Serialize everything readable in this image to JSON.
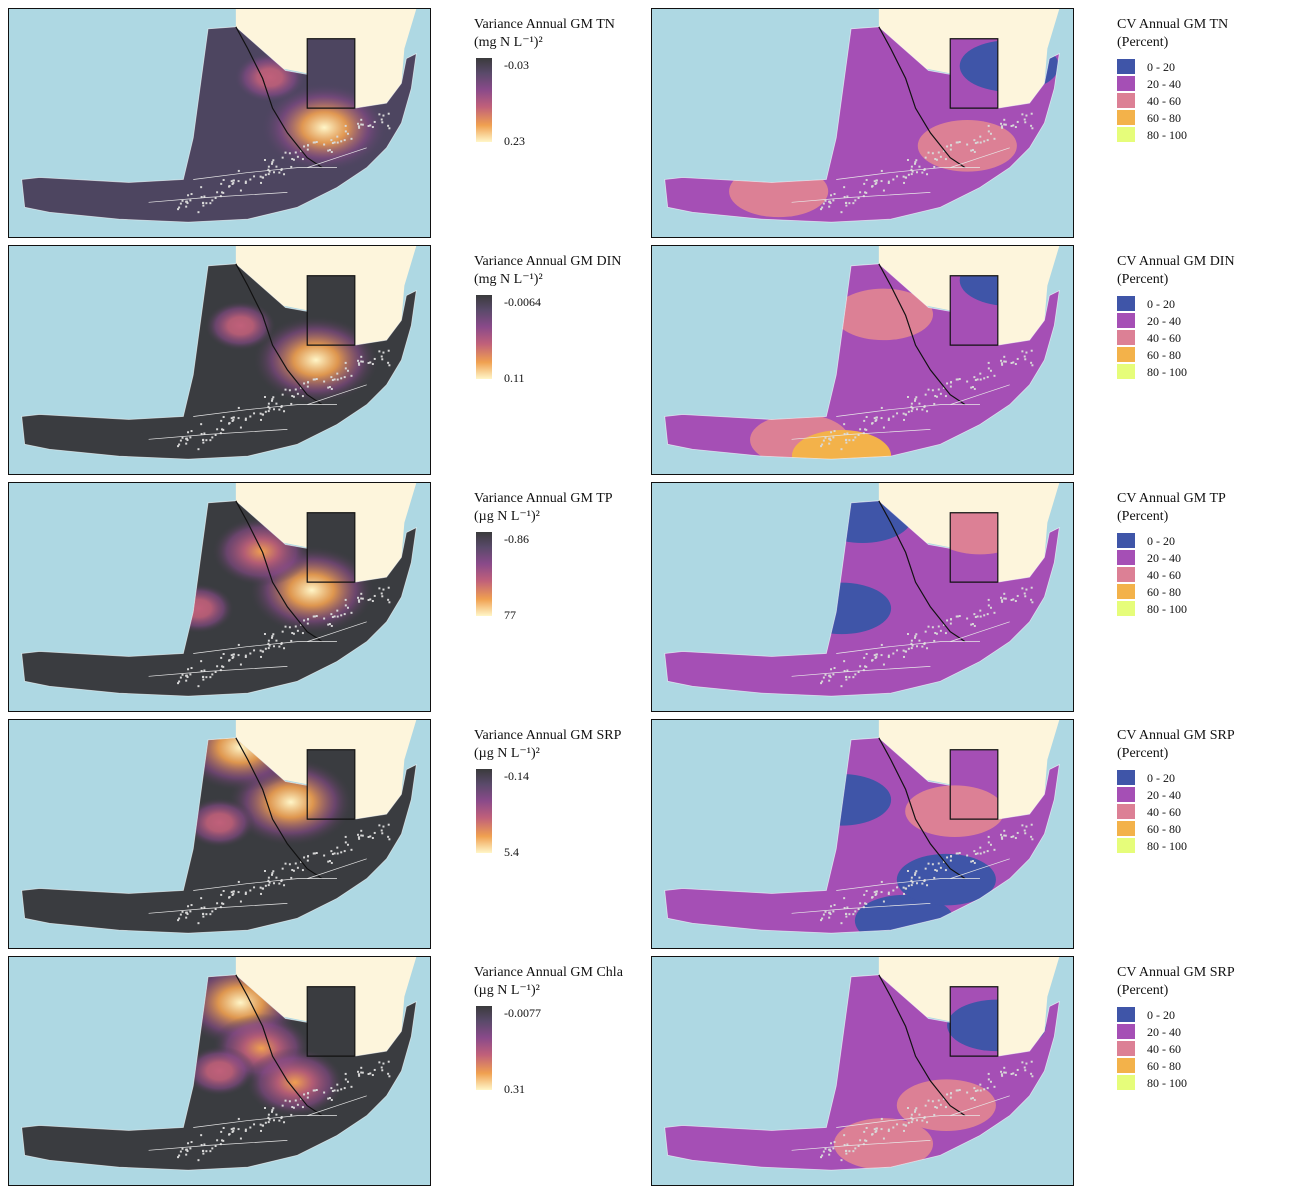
{
  "rows": [
    {
      "var_title": "Variance Annual GM TN",
      "var_unit": "(mg N L⁻¹)²",
      "var_max": "-0.03",
      "var_min": "0.23",
      "cv_title": "CV Annual GM TN",
      "cv_unit": "(Percent)"
    },
    {
      "var_title": "Variance Annual GM DIN",
      "var_unit": "(mg N L⁻¹)²",
      "var_max": "-0.0064",
      "var_min": "0.11",
      "cv_title": "CV Annual GM DIN",
      "cv_unit": "(Percent)"
    },
    {
      "var_title": "Variance Annual GM TP",
      "var_unit": "(µg N L⁻¹)²",
      "var_max": "-0.86",
      "var_min": "77",
      "cv_title": "CV Annual GM TP",
      "cv_unit": "(Percent)"
    },
    {
      "var_title": "Variance Annual GM SRP",
      "var_unit": "(µg N L⁻¹)²",
      "var_max": "-0.14",
      "var_min": "5.4",
      "cv_title": "CV Annual GM SRP",
      "cv_unit": "(Percent)"
    },
    {
      "var_title": "Variance Annual GM Chla",
      "var_unit": "(µg N L⁻¹)²",
      "var_max": "-0.0077",
      "var_min": "0.31",
      "cv_title": "CV Annual GM SRP",
      "cv_unit": "(Percent)"
    }
  ],
  "cv_classes": [
    {
      "label": "0 - 20",
      "color": "#3f55a8"
    },
    {
      "label": "20 - 40",
      "color": "#a54fb5"
    },
    {
      "label": "40 - 60",
      "color": "#dc8095"
    },
    {
      "label": "60 - 80",
      "color": "#f3b24a"
    },
    {
      "label": "80 - 100",
      "color": "#e6fd7a"
    }
  ],
  "colors": {
    "water": "#aed8e3",
    "land": "#fdf5dc",
    "border": "#111111",
    "var_ramp": [
      "#3a3a3c",
      "#8a4a8a",
      "#c0607a",
      "#f0a050",
      "#fff6c8"
    ]
  },
  "variance_maps": [
    {
      "base": "#4d4560",
      "hotspots": [
        {
          "ax": 0.75,
          "ay": 0.52,
          "rank": 3
        },
        {
          "ax": 0.62,
          "ay": 0.3,
          "rank": 1
        }
      ]
    },
    {
      "base": "#3a3c40",
      "hotspots": [
        {
          "ax": 0.73,
          "ay": 0.5,
          "rank": 3
        },
        {
          "ax": 0.55,
          "ay": 0.35,
          "rank": 1
        }
      ]
    },
    {
      "base": "#3a3c40",
      "hotspots": [
        {
          "ax": 0.72,
          "ay": 0.47,
          "rank": 3
        },
        {
          "ax": 0.6,
          "ay": 0.3,
          "rank": 2
        },
        {
          "ax": 0.45,
          "ay": 0.55,
          "rank": 1
        }
      ]
    },
    {
      "base": "#3a3c40",
      "hotspots": [
        {
          "ax": 0.67,
          "ay": 0.36,
          "rank": 3
        },
        {
          "ax": 0.55,
          "ay": 0.12,
          "rank": 3
        },
        {
          "ax": 0.5,
          "ay": 0.45,
          "rank": 1
        }
      ]
    },
    {
      "base": "#3a3c40",
      "hotspots": [
        {
          "ax": 0.55,
          "ay": 0.2,
          "rank": 3
        },
        {
          "ax": 0.6,
          "ay": 0.4,
          "rank": 2
        },
        {
          "ax": 0.68,
          "ay": 0.55,
          "rank": 2
        },
        {
          "ax": 0.5,
          "ay": 0.5,
          "rank": 1
        }
      ]
    }
  ],
  "cv_maps": [
    {
      "base_class": 1,
      "patches": [
        {
          "ax": 0.85,
          "ay": 0.25,
          "cls": 0
        },
        {
          "ax": 0.3,
          "ay": 0.8,
          "cls": 2
        },
        {
          "ax": 0.75,
          "ay": 0.6,
          "cls": 2
        }
      ]
    },
    {
      "base_class": 1,
      "patches": [
        {
          "ax": 0.55,
          "ay": 0.3,
          "cls": 2
        },
        {
          "ax": 0.35,
          "ay": 0.85,
          "cls": 2
        },
        {
          "ax": 0.45,
          "ay": 0.92,
          "cls": 3
        },
        {
          "ax": 0.85,
          "ay": 0.15,
          "cls": 0
        }
      ]
    },
    {
      "base_class": 1,
      "patches": [
        {
          "ax": 0.5,
          "ay": 0.15,
          "cls": 0
        },
        {
          "ax": 0.45,
          "ay": 0.55,
          "cls": 0
        },
        {
          "ax": 0.78,
          "ay": 0.2,
          "cls": 2
        }
      ]
    },
    {
      "base_class": 1,
      "patches": [
        {
          "ax": 0.6,
          "ay": 0.88,
          "cls": 0
        },
        {
          "ax": 0.7,
          "ay": 0.7,
          "cls": 0
        },
        {
          "ax": 0.72,
          "ay": 0.4,
          "cls": 2
        },
        {
          "ax": 0.45,
          "ay": 0.35,
          "cls": 0
        }
      ]
    },
    {
      "base_class": 1,
      "patches": [
        {
          "ax": 0.82,
          "ay": 0.3,
          "cls": 0
        },
        {
          "ax": 0.55,
          "ay": 0.82,
          "cls": 2
        },
        {
          "ax": 0.7,
          "ay": 0.65,
          "cls": 2
        }
      ]
    }
  ]
}
